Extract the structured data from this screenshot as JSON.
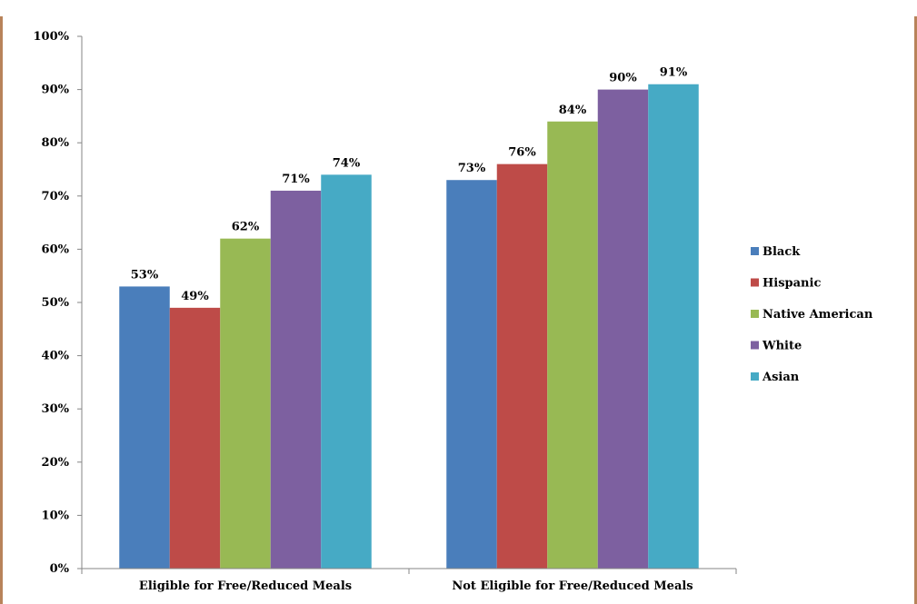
{
  "chart_data": {
    "type": "bar",
    "categories": [
      "Eligible for Free/Reduced Meals",
      "Not Eligible for Free/Reduced Meals"
    ],
    "series": [
      {
        "name": "Black",
        "color": "#4a7ebb",
        "values": [
          53,
          73
        ]
      },
      {
        "name": "Hispanic",
        "color": "#be4b48",
        "values": [
          49,
          76
        ]
      },
      {
        "name": "Native American",
        "color": "#98b954",
        "values": [
          62,
          84
        ]
      },
      {
        "name": "White",
        "color": "#7d60a0",
        "values": [
          71,
          90
        ]
      },
      {
        "name": "Asian",
        "color": "#46aac5",
        "values": [
          74,
          91
        ]
      }
    ],
    "data_labels": [
      [
        "53%",
        "73%"
      ],
      [
        "49%",
        "76%"
      ],
      [
        "62%",
        "84%"
      ],
      [
        "71%",
        "90%"
      ],
      [
        "74%",
        "91%"
      ]
    ],
    "ylim": [
      0,
      100
    ],
    "yticks": [
      "0%",
      "10%",
      "20%",
      "30%",
      "40%",
      "50%",
      "60%",
      "70%",
      "80%",
      "90%",
      "100%"
    ],
    "title": "",
    "xlabel": "",
    "ylabel": "",
    "grid": false,
    "legend_position": "right"
  },
  "colors": {
    "frame_border": "#b8835a",
    "axis": "#868686"
  }
}
